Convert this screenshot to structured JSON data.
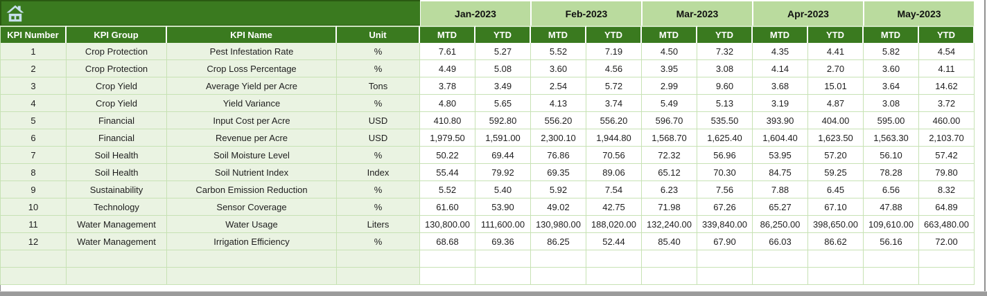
{
  "header": {
    "label_columns": [
      "KPI Number",
      "KPI Group",
      "KPI Name",
      "Unit"
    ],
    "months": [
      "Jan-2023",
      "Feb-2023",
      "Mar-2023",
      "Apr-2023",
      "May-2023"
    ],
    "sub_columns": [
      "MTD",
      "YTD"
    ]
  },
  "rows": [
    {
      "kpi_number": "1",
      "kpi_group": "Crop Protection",
      "kpi_name": "Pest Infestation Rate",
      "unit": "%",
      "values": [
        "7.61",
        "5.27",
        "5.52",
        "7.19",
        "4.50",
        "7.32",
        "4.35",
        "4.41",
        "5.82",
        "4.54"
      ]
    },
    {
      "kpi_number": "2",
      "kpi_group": "Crop Protection",
      "kpi_name": "Crop Loss Percentage",
      "unit": "%",
      "values": [
        "4.49",
        "5.08",
        "3.60",
        "4.56",
        "3.95",
        "3.08",
        "4.14",
        "2.70",
        "3.60",
        "4.11"
      ]
    },
    {
      "kpi_number": "3",
      "kpi_group": "Crop Yield",
      "kpi_name": "Average Yield per Acre",
      "unit": "Tons",
      "values": [
        "3.78",
        "3.49",
        "2.54",
        "5.72",
        "2.99",
        "9.60",
        "3.68",
        "15.01",
        "3.64",
        "14.62"
      ]
    },
    {
      "kpi_number": "4",
      "kpi_group": "Crop Yield",
      "kpi_name": "Yield Variance",
      "unit": "%",
      "values": [
        "4.80",
        "5.65",
        "4.13",
        "3.74",
        "5.49",
        "5.13",
        "3.19",
        "4.87",
        "3.08",
        "3.72"
      ]
    },
    {
      "kpi_number": "5",
      "kpi_group": "Financial",
      "kpi_name": "Input Cost per Acre",
      "unit": "USD",
      "values": [
        "410.80",
        "592.80",
        "556.20",
        "556.20",
        "596.70",
        "535.50",
        "393.90",
        "404.00",
        "595.00",
        "460.00"
      ]
    },
    {
      "kpi_number": "6",
      "kpi_group": "Financial",
      "kpi_name": "Revenue per Acre",
      "unit": "USD",
      "values": [
        "1,979.50",
        "1,591.00",
        "2,300.10",
        "1,944.80",
        "1,568.70",
        "1,625.40",
        "1,604.40",
        "1,623.50",
        "1,563.30",
        "2,103.70"
      ]
    },
    {
      "kpi_number": "7",
      "kpi_group": "Soil Health",
      "kpi_name": "Soil Moisture Level",
      "unit": "%",
      "values": [
        "50.22",
        "69.44",
        "76.86",
        "70.56",
        "72.32",
        "56.96",
        "53.95",
        "57.20",
        "56.10",
        "57.42"
      ]
    },
    {
      "kpi_number": "8",
      "kpi_group": "Soil Health",
      "kpi_name": "Soil Nutrient Index",
      "unit": "Index",
      "values": [
        "55.44",
        "79.92",
        "69.35",
        "89.06",
        "65.12",
        "70.30",
        "84.75",
        "59.25",
        "78.28",
        "79.80"
      ]
    },
    {
      "kpi_number": "9",
      "kpi_group": "Sustainability",
      "kpi_name": "Carbon Emission Reduction",
      "unit": "%",
      "values": [
        "5.52",
        "5.40",
        "5.92",
        "7.54",
        "6.23",
        "7.56",
        "7.88",
        "6.45",
        "6.56",
        "8.32"
      ]
    },
    {
      "kpi_number": "10",
      "kpi_group": "Technology",
      "kpi_name": "Sensor Coverage",
      "unit": "%",
      "values": [
        "61.60",
        "53.90",
        "49.02",
        "42.75",
        "71.98",
        "67.26",
        "65.27",
        "67.10",
        "47.88",
        "64.89"
      ]
    },
    {
      "kpi_number": "11",
      "kpi_group": "Water Management",
      "kpi_name": "Water Usage",
      "unit": "Liters",
      "values": [
        "130,800.00",
        "111,600.00",
        "130,980.00",
        "188,020.00",
        "132,240.00",
        "339,840.00",
        "86,250.00",
        "398,650.00",
        "109,610.00",
        "663,480.00"
      ]
    },
    {
      "kpi_number": "12",
      "kpi_group": "Water Management",
      "kpi_name": "Irrigation Efficiency",
      "unit": "%",
      "values": [
        "68.68",
        "69.36",
        "86.25",
        "52.44",
        "85.40",
        "67.90",
        "66.03",
        "86.62",
        "56.16",
        "72.00"
      ]
    }
  ],
  "empty_row_count": 2,
  "icons": {
    "home": "home-icon"
  },
  "colors": {
    "header_dark_green": "#3a7a1f",
    "month_light_green": "#badb9e",
    "label_cell_bg": "#eaf3e2",
    "grid_line": "#c7e2b4",
    "home_icon_blue": "#c6dfec",
    "scrollbar_gray": "#9b9b9b"
  }
}
